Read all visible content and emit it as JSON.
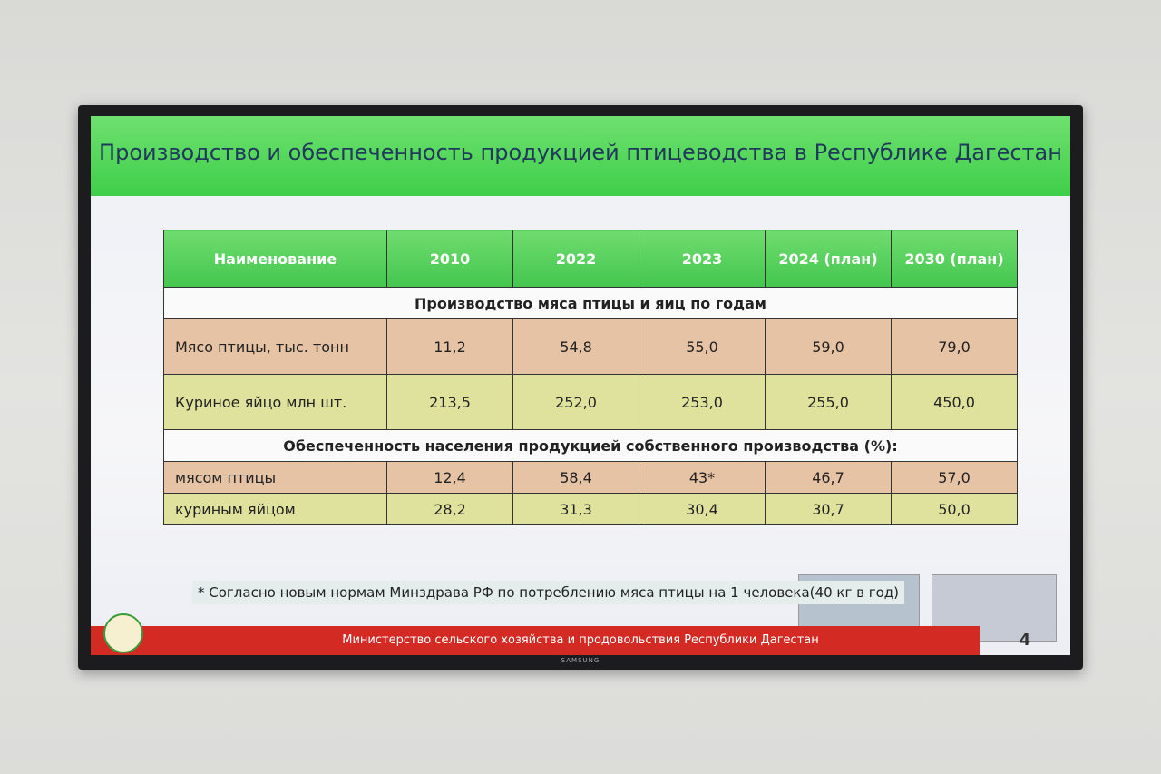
{
  "slide": {
    "title": "Производство и обеспеченность продукцией птицеводства в Республике Дагестан",
    "table": {
      "header": [
        "Наименование",
        "2010",
        "2022",
        "2023",
        "2024 (план)",
        "2030 (план)"
      ],
      "sections": [
        {
          "title": "Производство мяса птицы и яиц по годам",
          "rows": [
            [
              "Мясо птицы, тыс. тонн",
              "11,2",
              "54,8",
              "55,0",
              "59,0",
              "79,0"
            ],
            [
              "Куриное яйцо млн шт.",
              "213,5",
              "252,0",
              "253,0",
              "255,0",
              "450,0"
            ]
          ]
        },
        {
          "title": "Обеспеченность населения продукцией собственного производства (%):",
          "rows": [
            [
              "мясом птицы",
              "12,4",
              "58,4",
              "43*",
              "46,7",
              "57,0"
            ],
            [
              "куриным яйцом",
              "28,2",
              "31,3",
              "30,4",
              "30,7",
              "50,0"
            ]
          ]
        }
      ]
    },
    "footnote": "* Согласно новым нормам Минздрава РФ по потреблению мяса птицы на 1 человека(40 кг в год)",
    "footer": "Министерство сельского хозяйства и продовольствия Республики Дагестан",
    "page_number": "4",
    "tv_brand": "SAMSUNG"
  }
}
